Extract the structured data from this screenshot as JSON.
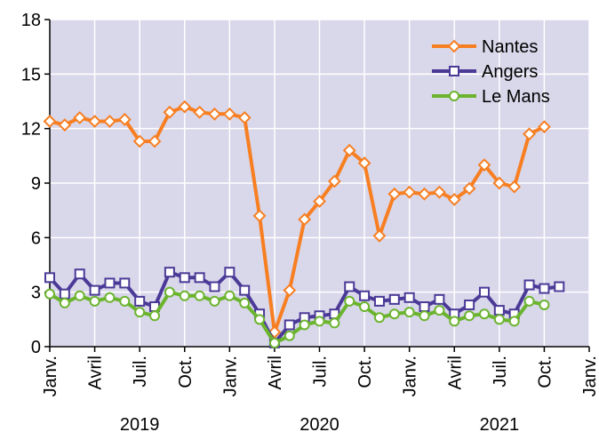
{
  "chart_data": {
    "type": "line",
    "categories": [
      "Janv.",
      null,
      null,
      "Avril",
      null,
      null,
      "Juil.",
      null,
      null,
      "Oct.",
      null,
      null,
      "Janv.",
      null,
      null,
      "Avril",
      null,
      null,
      "Juil.",
      null,
      null,
      "Oct.",
      null,
      null,
      "Janv.",
      null,
      null,
      "Avril",
      null,
      null,
      "Juil.",
      null,
      null,
      "Oct.",
      null,
      null,
      "Janv."
    ],
    "years": [
      "2019",
      "2020",
      "2021"
    ],
    "series": [
      {
        "name": "Nantes",
        "color": "#f77f22",
        "marker": "diamond",
        "values": [
          12.4,
          12.2,
          12.6,
          12.4,
          12.4,
          12.5,
          11.3,
          11.3,
          12.9,
          13.2,
          12.9,
          12.8,
          12.8,
          12.6,
          7.2,
          0.8,
          3.1,
          7.0,
          8.0,
          9.1,
          10.8,
          10.1,
          6.1,
          8.4,
          8.5,
          8.4,
          8.5,
          8.1,
          8.7,
          10.0,
          9.0,
          8.8,
          11.7,
          12.1,
          null,
          null,
          null
        ]
      },
      {
        "name": "Angers",
        "color": "#4b3a97",
        "marker": "square",
        "values": [
          3.8,
          2.9,
          4.0,
          3.1,
          3.5,
          3.5,
          2.5,
          2.2,
          4.1,
          3.8,
          3.8,
          3.3,
          4.1,
          3.1,
          1.8,
          0.2,
          1.2,
          1.6,
          1.7,
          1.8,
          3.3,
          2.8,
          2.5,
          2.6,
          2.7,
          2.2,
          2.6,
          1.8,
          2.3,
          3.0,
          2.0,
          1.8,
          3.4,
          3.2,
          3.3,
          null,
          null
        ]
      },
      {
        "name": "Le Mans",
        "color": "#6bb42e",
        "marker": "circle",
        "values": [
          2.9,
          2.4,
          2.8,
          2.5,
          2.7,
          2.5,
          1.9,
          1.7,
          3.0,
          2.8,
          2.8,
          2.5,
          2.8,
          2.4,
          1.5,
          0.2,
          0.6,
          1.2,
          1.4,
          1.3,
          2.5,
          2.2,
          1.6,
          1.8,
          1.9,
          1.7,
          2.0,
          1.4,
          1.7,
          1.8,
          1.5,
          1.4,
          2.5,
          2.3,
          null,
          null,
          null
        ]
      }
    ],
    "ylim": [
      0,
      18
    ],
    "yticks": [
      0,
      3,
      6,
      9,
      12,
      15,
      18
    ],
    "grid": true,
    "legend": "top-right"
  }
}
